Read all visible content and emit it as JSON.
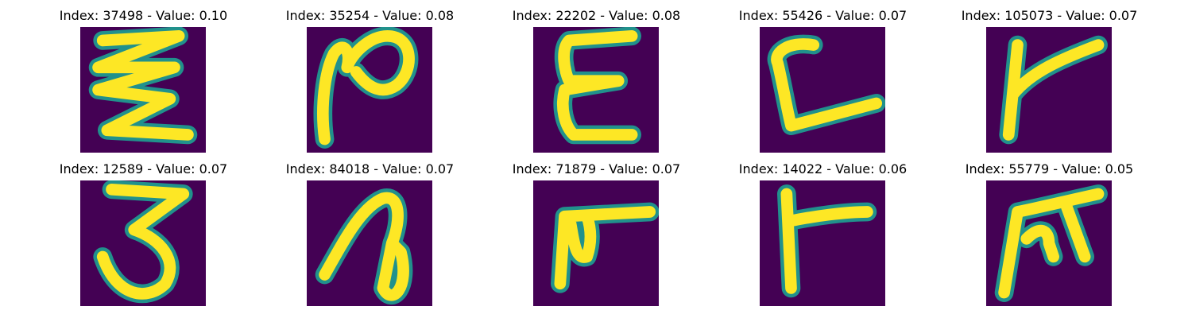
{
  "figure": {
    "panels": [
      {
        "title": "Index: 37498 - Value: 0.10",
        "glyph": "zigzag-glyph"
      },
      {
        "title": "Index: 35254 - Value: 0.08",
        "glyph": "loop-glyph"
      },
      {
        "title": "Index: 22202 - Value: 0.08",
        "glyph": "epsilon-glyph"
      },
      {
        "title": "Index: 55426 - Value: 0.07",
        "glyph": "l-hook-glyph"
      },
      {
        "title": "Index: 105073 - Value: 0.07",
        "glyph": "k-like-glyph"
      },
      {
        "title": "Index: 12589 - Value: 0.07",
        "glyph": "three-like-glyph"
      },
      {
        "title": "Index: 84018 - Value: 0.07",
        "glyph": "curl-glyph"
      },
      {
        "title": "Index: 71879 - Value: 0.07",
        "glyph": "f-like-glyph"
      },
      {
        "title": "Index: 14022 - Value: 0.06",
        "glyph": "t-like-glyph"
      },
      {
        "title": "Index: 55779 - Value: 0.05",
        "glyph": "m-like-glyph"
      }
    ],
    "colors": {
      "background": "#440154",
      "stroke_edge": "#21918c",
      "stroke_core": "#fde725"
    }
  }
}
